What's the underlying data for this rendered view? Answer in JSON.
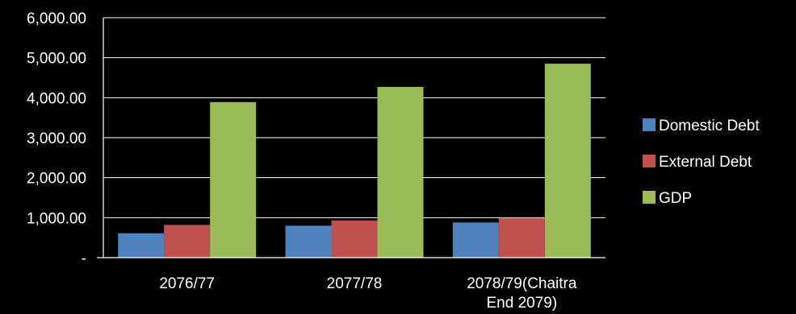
{
  "chart_data": {
    "type": "bar",
    "categories": [
      [
        "2076/77"
      ],
      [
        "2077/78"
      ],
      [
        "2078/79(Chaitra",
        "End 2079)"
      ]
    ],
    "series": [
      {
        "name": "Domestic Debt",
        "color": "#4f81bd",
        "values": [
          610,
          800,
          880
        ]
      },
      {
        "name": "External Debt",
        "color": "#c0504d",
        "values": [
          820,
          930,
          990
        ]
      },
      {
        "name": "GDP",
        "color": "#9bbb59",
        "values": [
          3890,
          4270,
          4850
        ]
      }
    ],
    "y_ticks": [
      {
        "value": 0,
        "label": "-"
      },
      {
        "value": 1000,
        "label": "1,000.00"
      },
      {
        "value": 2000,
        "label": "2,000.00"
      },
      {
        "value": 3000,
        "label": "3,000.00"
      },
      {
        "value": 4000,
        "label": "4,000.00"
      },
      {
        "value": 5000,
        "label": "5,000.00"
      },
      {
        "value": 6000,
        "label": "6,000.00"
      }
    ],
    "ylim": [
      0,
      6000
    ],
    "grid": true,
    "legend_position": "right",
    "plot_background": "#000000",
    "axis_color": "#ffffff"
  }
}
